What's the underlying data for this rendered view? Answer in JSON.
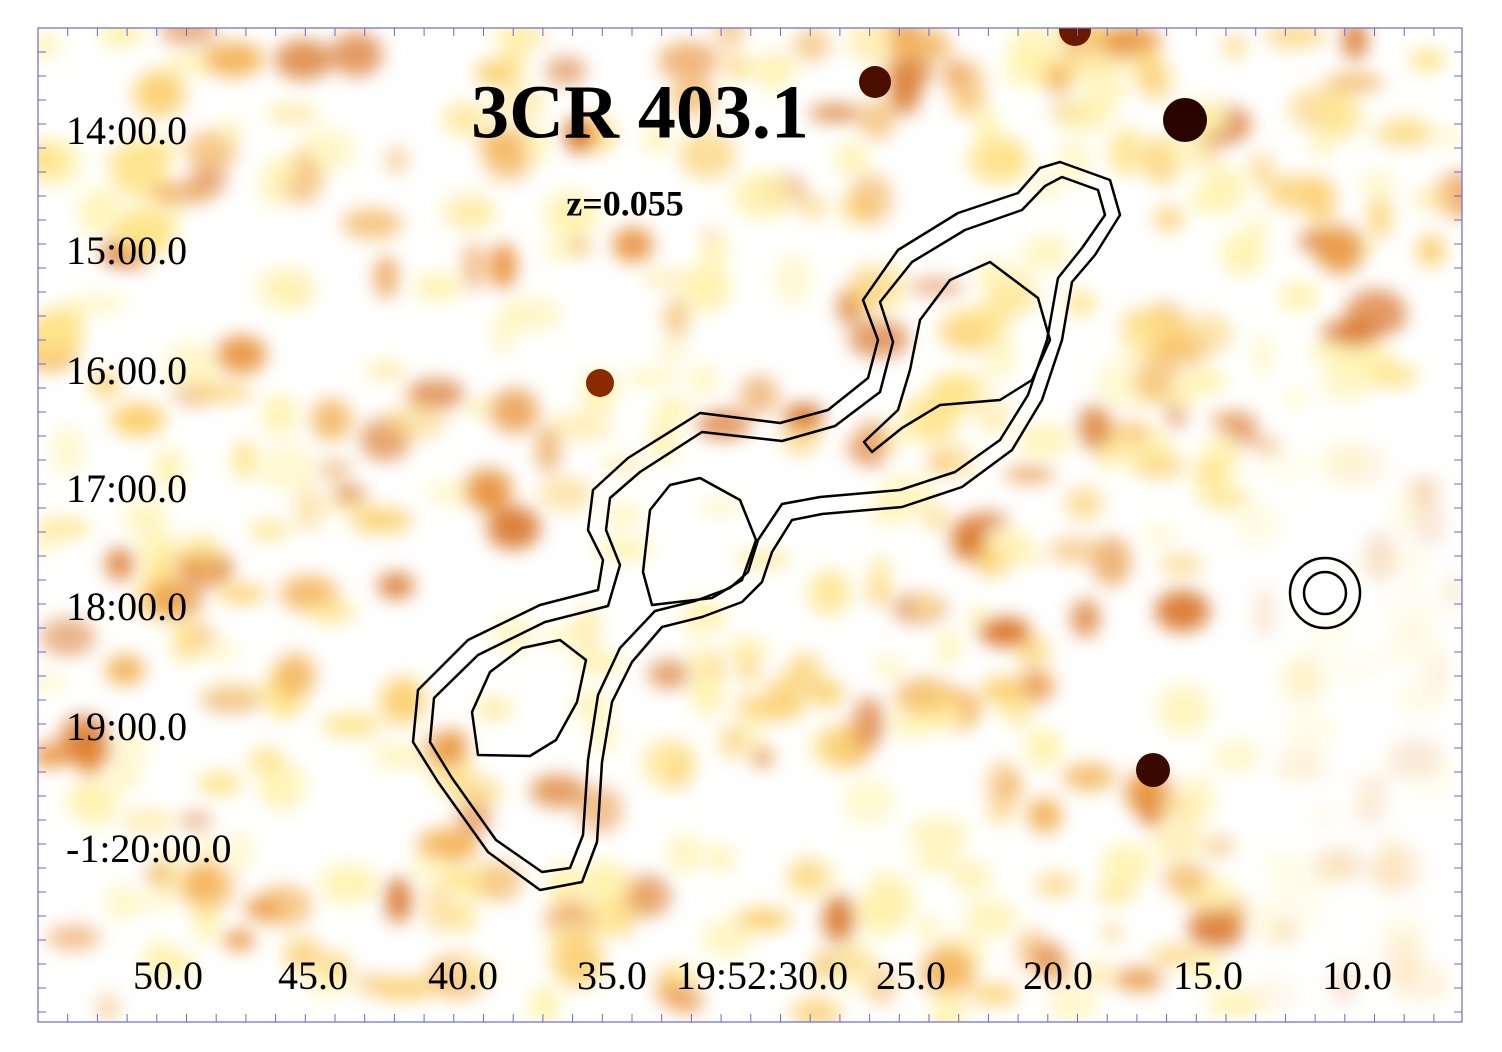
{
  "header": {
    "title": "3CR 403.1",
    "subtitle": "z=0.055"
  },
  "axes": {
    "y_labels": [
      "14:00.0",
      "15:00.0",
      "16:00.0",
      "17:00.0",
      "18:00.0",
      "19:00.0",
      "-1:20:00.0"
    ],
    "x_labels": [
      "50.0",
      "45.0",
      "40.0",
      "35.0",
      "19:52:30.0",
      "25.0",
      "20.0",
      "15.0",
      "10.0"
    ]
  }
}
